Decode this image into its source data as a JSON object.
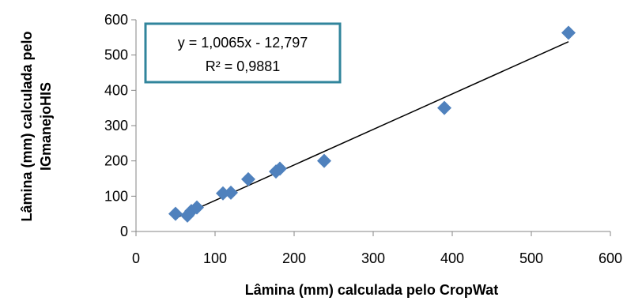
{
  "chart_data": {
    "type": "scatter",
    "xlabel": "Lâmina (mm) calculada pelo CropWat",
    "ylabel_lines": [
      "Lâmina (mm) calculada pelo",
      "IGmanejoHIS"
    ],
    "xlim": [
      0,
      600
    ],
    "ylim": [
      0,
      600
    ],
    "xticks": [
      0,
      100,
      200,
      300,
      400,
      500,
      600
    ],
    "yticks": [
      0,
      100,
      200,
      300,
      400,
      500,
      600
    ],
    "grid": false,
    "marker": "diamond",
    "points": [
      {
        "x": 50,
        "y": 50
      },
      {
        "x": 65,
        "y": 45
      },
      {
        "x": 70,
        "y": 58
      },
      {
        "x": 77,
        "y": 68
      },
      {
        "x": 110,
        "y": 108
      },
      {
        "x": 120,
        "y": 110
      },
      {
        "x": 142,
        "y": 148
      },
      {
        "x": 177,
        "y": 170
      },
      {
        "x": 182,
        "y": 178
      },
      {
        "x": 238,
        "y": 200
      },
      {
        "x": 390,
        "y": 350
      },
      {
        "x": 547,
        "y": 563
      }
    ],
    "trendline": {
      "slope": 1.0065,
      "intercept": -12.797,
      "x_range": [
        50,
        547
      ]
    },
    "annotation": {
      "equation": "y = 1,0065x - 12,797",
      "r_squared": "R² = 0,9881"
    },
    "colors": {
      "marker": "#4f81bd",
      "trendline": "#000000",
      "annotation_border": "#31859c",
      "axis": "#868686"
    }
  }
}
